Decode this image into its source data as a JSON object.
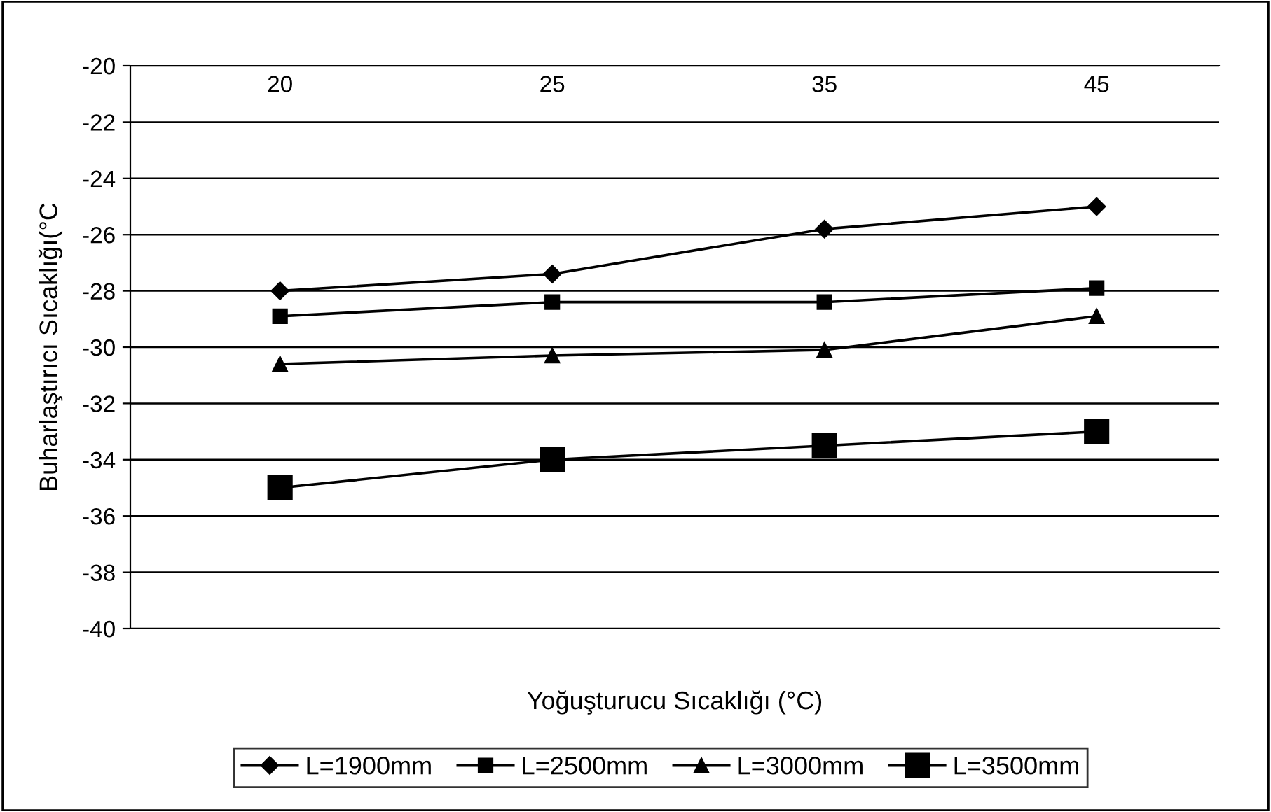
{
  "chart_data": {
    "type": "line",
    "xlabel": "Yoğuşturucu Sıcaklığı (°C)",
    "ylabel": "Buharlaştırıcı Sıcaklığı(°C",
    "categories": [
      "20",
      "25",
      "35",
      "45"
    ],
    "series": [
      {
        "name": "L=1900mm",
        "color": "#000000",
        "marker": "diamond",
        "values": [
          -28.0,
          -27.4,
          -25.8,
          -25.0
        ]
      },
      {
        "name": "L=2500mm",
        "color": "#000000",
        "marker": "square",
        "values": [
          -28.9,
          -28.4,
          -28.4,
          -27.9
        ]
      },
      {
        "name": "L=3000mm",
        "color": "#000000",
        "marker": "triangle",
        "values": [
          -30.6,
          -30.3,
          -30.1,
          -28.9
        ]
      },
      {
        "name": "L=3500mm",
        "color": "#000000",
        "marker": "square",
        "values": [
          -35.0,
          -34.0,
          -33.5,
          -33.0
        ]
      }
    ],
    "ylim": [
      -40,
      -20
    ],
    "yticks": [
      -40,
      -38,
      -36,
      -34,
      -32,
      -30,
      -28,
      -26,
      -24,
      -22,
      -20
    ],
    "grid": "y",
    "legend": "bottom",
    "line_style": "solid"
  }
}
